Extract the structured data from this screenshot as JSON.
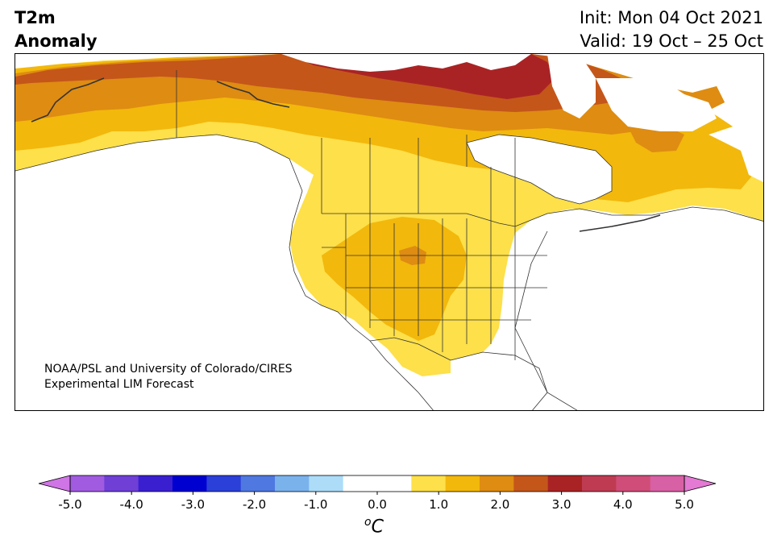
{
  "title": {
    "line1": "T2m",
    "line2": "Anomaly"
  },
  "init": "Init: Mon 04 Oct 2021",
  "valid": "Valid: 19 Oct – 25 Oct",
  "credit": {
    "line1": "NOAA/PSL and University of Colorado/CIRES",
    "line2": "Experimental LIM Forecast"
  },
  "colorbar": {
    "unit_prefix": "o",
    "unit": "C",
    "ticks": [
      "-5.0",
      "-4.0",
      "-3.0",
      "-2.0",
      "-1.0",
      "0.0",
      "1.0",
      "2.0",
      "3.0",
      "4.0",
      "5.0"
    ],
    "colors": [
      "#d075e6",
      "#a15be0",
      "#6f3fd6",
      "#3a1fd0",
      "#0000d0",
      "#2a40d8",
      "#4f78e0",
      "#7ab2ec",
      "#acdcf8",
      "#ffffff",
      "#ffffff",
      "#fde04a",
      "#f2b80c",
      "#de8c12",
      "#c4561a",
      "#aa2324",
      "#bf3b52",
      "#cf4d78",
      "#d860a4",
      "#e47ad4"
    ]
  },
  "anomaly_colors": {
    "0.5-1.0": "#fde04a",
    "1.0-1.5": "#f2b80c",
    "1.5-2.0": "#de8c12",
    "2.0-2.5": "#c4561a",
    "2.5-3.0": "#aa2324"
  }
}
